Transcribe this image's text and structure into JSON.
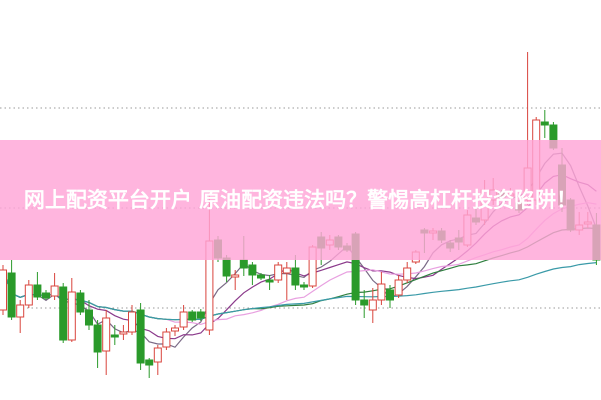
{
  "headline": "网上配资平台开户 原油配资违法吗？警惕高杠杆投资陷阱！",
  "colors": {
    "up": "#d9443c",
    "down": "#2a9a2a",
    "banner": "#ffa5d7",
    "grid": "#999999",
    "ma": [
      "#7a6a86",
      "#8b3a8b",
      "#e8a0e0",
      "#2f7f3f",
      "#3a9aa8"
    ]
  },
  "chart_data": {
    "type": "candlestick",
    "title": "",
    "xlabel": "",
    "ylabel": "",
    "ylim": [
      0.8,
      40.8
    ],
    "grid": {
      "horizontal": [
        10,
        20,
        30
      ],
      "style": "dotted"
    },
    "moving_average_windows": [
      5,
      10,
      20,
      30,
      60
    ],
    "ohlc": [
      [
        9.8,
        14.3,
        9.3,
        13.8
      ],
      [
        13.5,
        14.8,
        8.8,
        9.1
      ],
      [
        9.1,
        10.8,
        7.5,
        10.3
      ],
      [
        10.3,
        12.8,
        10.0,
        12.3
      ],
      [
        12.3,
        13.6,
        10.8,
        11.1
      ],
      [
        11.5,
        11.8,
        10.8,
        11.0
      ],
      [
        11.2,
        13.5,
        10.8,
        12.2
      ],
      [
        12.1,
        12.5,
        6.5,
        6.8
      ],
      [
        6.8,
        13.0,
        6.6,
        11.6
      ],
      [
        11.5,
        11.8,
        9.3,
        9.6
      ],
      [
        9.8,
        10.8,
        7.8,
        8.3
      ],
      [
        8.3,
        8.8,
        4.0,
        5.6
      ],
      [
        5.7,
        9.8,
        3.3,
        9.0
      ],
      [
        7.3,
        8.3,
        6.3,
        7.1
      ],
      [
        7.4,
        8.3,
        6.8,
        7.6
      ],
      [
        7.6,
        10.3,
        7.3,
        9.6
      ],
      [
        9.8,
        10.5,
        3.8,
        4.5
      ],
      [
        4.8,
        5.0,
        3.0,
        4.3
      ],
      [
        4.6,
        6.3,
        3.3,
        6.0
      ],
      [
        6.1,
        8.0,
        5.8,
        7.6
      ],
      [
        7.7,
        8.3,
        7.2,
        8.0
      ],
      [
        8.1,
        10.3,
        7.8,
        9.6
      ],
      [
        9.6,
        9.8,
        8.6,
        8.8
      ],
      [
        9.6,
        9.9,
        8.7,
        9.0
      ],
      [
        7.8,
        21.8,
        7.3,
        16.7
      ],
      [
        16.8,
        17.2,
        14.6,
        15.0
      ],
      [
        15.0,
        15.3,
        12.6,
        13.2
      ],
      [
        13.1,
        13.8,
        11.8,
        13.3
      ],
      [
        14.8,
        17.2,
        13.2,
        14.0
      ],
      [
        14.3,
        14.6,
        12.3,
        13.3
      ],
      [
        13.3,
        13.5,
        12.8,
        13.0
      ],
      [
        12.8,
        13.3,
        11.8,
        12.6
      ],
      [
        12.8,
        14.6,
        12.5,
        14.3
      ],
      [
        13.5,
        14.6,
        10.8,
        14.0
      ],
      [
        14.0,
        15.3,
        11.8,
        12.3
      ],
      [
        12.3,
        12.6,
        11.8,
        12.1
      ],
      [
        12.2,
        16.3,
        12.0,
        16.1
      ],
      [
        17.1,
        17.6,
        14.3,
        16.0
      ],
      [
        16.3,
        17.3,
        15.8,
        16.8
      ],
      [
        17.1,
        17.3,
        15.8,
        16.1
      ],
      [
        16.2,
        16.5,
        15.6,
        15.8
      ],
      [
        17.4,
        17.6,
        10.3,
        10.8
      ],
      [
        10.8,
        11.8,
        9.0,
        10.3
      ],
      [
        9.8,
        12.0,
        8.5,
        10.8
      ],
      [
        10.8,
        13.6,
        10.3,
        12.4
      ],
      [
        11.8,
        12.3,
        10.0,
        10.8
      ],
      [
        11.3,
        13.3,
        11.0,
        12.8
      ],
      [
        12.8,
        14.6,
        12.5,
        14.0
      ],
      [
        14.6,
        15.8,
        14.4,
        15.6
      ],
      [
        17.8,
        18.0,
        15.5,
        17.5
      ],
      [
        17.5,
        18.0,
        16.8,
        17.7
      ],
      [
        17.7,
        18.0,
        16.5,
        16.8
      ],
      [
        16.5,
        16.8,
        15.6,
        16.0
      ],
      [
        17.0,
        17.8,
        15.8,
        16.6
      ],
      [
        16.3,
        19.8,
        16.1,
        19.3
      ],
      [
        19.0,
        20.8,
        18.3,
        18.6
      ],
      [
        18.8,
        22.8,
        18.3,
        21.8
      ],
      [
        20.8,
        23.0,
        20.3,
        21.8
      ],
      [
        21.6,
        21.8,
        20.8,
        21.1
      ],
      [
        21.2,
        22.0,
        20.8,
        21.4
      ],
      [
        20.5,
        20.8,
        19.5,
        19.8
      ],
      [
        20.8,
        35.6,
        20.3,
        24.0
      ],
      [
        20.8,
        29.1,
        20.3,
        28.8
      ],
      [
        28.6,
        29.8,
        27.0,
        28.3
      ],
      [
        28.3,
        28.6,
        25.8,
        26.0
      ],
      [
        24.3,
        26.0,
        19.6,
        20.3
      ],
      [
        20.8,
        21.0,
        17.6,
        17.8
      ],
      [
        17.8,
        19.6,
        17.3,
        18.3
      ],
      [
        18.4,
        19.6,
        18.0,
        18.6
      ],
      [
        18.3,
        19.5,
        14.3,
        14.8
      ]
    ]
  }
}
